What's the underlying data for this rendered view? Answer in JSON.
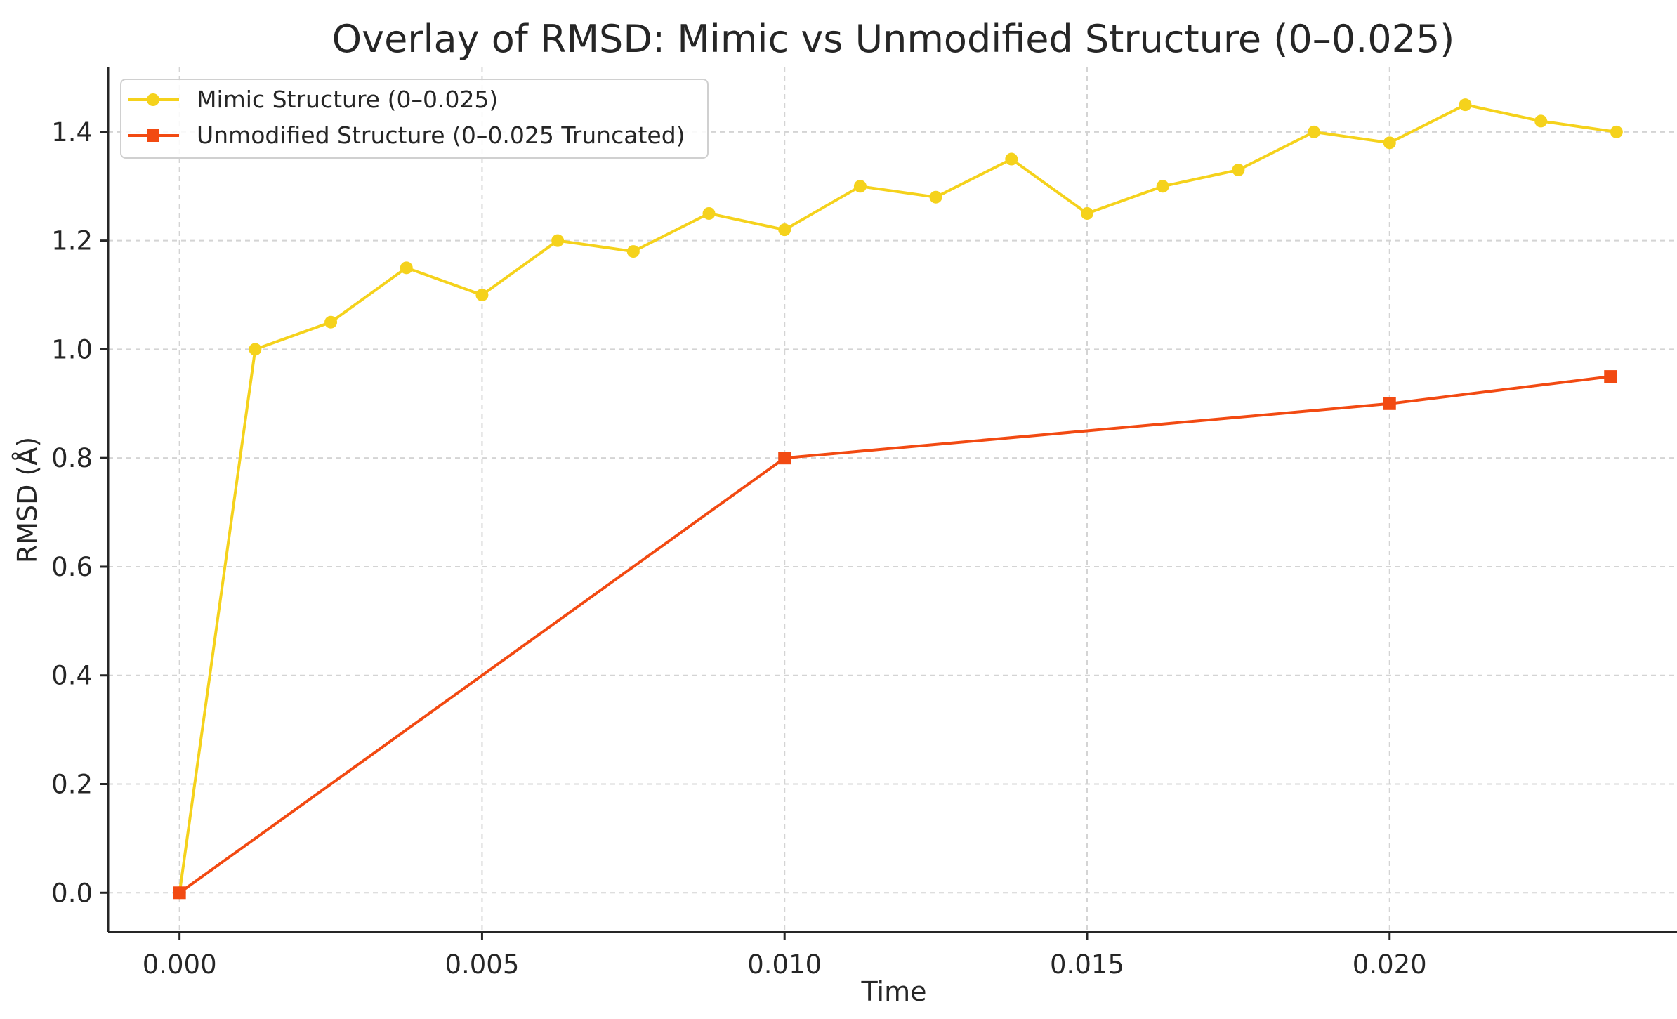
{
  "chart_data": {
    "type": "line",
    "title": "Overlay of RMSD: Mimic vs Unmodified Structure (0–0.025)",
    "xlabel": "Time",
    "ylabel": "RMSD (Å)",
    "xlim": [
      -0.00118,
      0.02475
    ],
    "ylim": [
      -0.072,
      1.52
    ],
    "xticks": [
      0.0,
      0.005,
      0.01,
      0.015,
      0.02
    ],
    "xtick_labels": [
      "0.000",
      "0.005",
      "0.010",
      "0.015",
      "0.020"
    ],
    "yticks": [
      0.0,
      0.2,
      0.4,
      0.6,
      0.8,
      1.0,
      1.2,
      1.4
    ],
    "ytick_labels": [
      "0.0",
      "0.2",
      "0.4",
      "0.6",
      "0.8",
      "1.0",
      "1.2",
      "1.4"
    ],
    "grid": true,
    "legend_position": "top-left",
    "series": [
      {
        "name": "Mimic Structure (0–0.025)",
        "color": "#f5d21c",
        "marker": "circle",
        "x": [
          0.0,
          0.00125,
          0.0025,
          0.00375,
          0.005,
          0.00625,
          0.0075,
          0.00875,
          0.01,
          0.01125,
          0.0125,
          0.01375,
          0.015,
          0.01625,
          0.0175,
          0.01875,
          0.02,
          0.02125,
          0.0225,
          0.02375
        ],
        "y": [
          0.0,
          1.0,
          1.05,
          1.15,
          1.1,
          1.2,
          1.18,
          1.25,
          1.22,
          1.3,
          1.28,
          1.35,
          1.25,
          1.3,
          1.33,
          1.4,
          1.38,
          1.45,
          1.42,
          1.4
        ]
      },
      {
        "name": "Unmodified Structure (0–0.025 Truncated)",
        "color": "#f24a12",
        "marker": "square",
        "x": [
          0.0,
          0.01,
          0.02,
          0.02365
        ],
        "y": [
          0.0,
          0.8,
          0.9,
          0.95
        ]
      }
    ]
  }
}
